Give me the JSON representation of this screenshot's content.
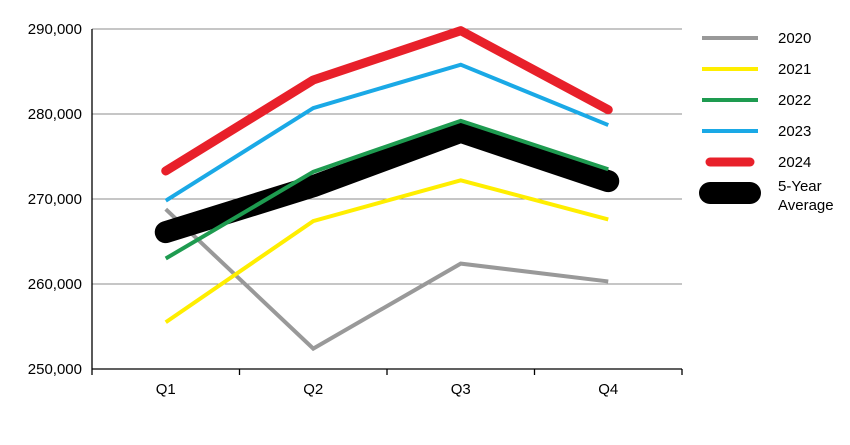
{
  "chart_data": {
    "type": "line",
    "title": "",
    "xlabel": "",
    "ylabel": "",
    "categories": [
      "Q1",
      "Q2",
      "Q3",
      "Q4"
    ],
    "ylim": [
      250000,
      290000
    ],
    "yticks": [
      250000,
      260000,
      270000,
      280000,
      290000
    ],
    "ytick_labels": [
      "250,000",
      "260,000",
      "270,000",
      "280,000",
      "290,000"
    ],
    "grid": "horizontal",
    "legend_position": "right",
    "series": [
      {
        "name": "2020",
        "color": "#999999",
        "values": [
          268800,
          252400,
          262400,
          260300
        ]
      },
      {
        "name": "2021",
        "color": "#ffee00",
        "values": [
          255500,
          267400,
          272200,
          267600
        ]
      },
      {
        "name": "2022",
        "color": "#1e9b50",
        "values": [
          263000,
          273200,
          279200,
          273500
        ]
      },
      {
        "name": "2023",
        "color": "#1aa9e6",
        "values": [
          269800,
          280700,
          285800,
          278700
        ]
      },
      {
        "name": "2024",
        "color": "#e8202a",
        "values": [
          273300,
          284000,
          289800,
          280500
        ]
      },
      {
        "name": "5-Year Average",
        "name_lines": [
          "5-Year",
          "Average"
        ],
        "color": "#000000",
        "values": [
          266100,
          271500,
          277900,
          272100
        ]
      }
    ]
  }
}
